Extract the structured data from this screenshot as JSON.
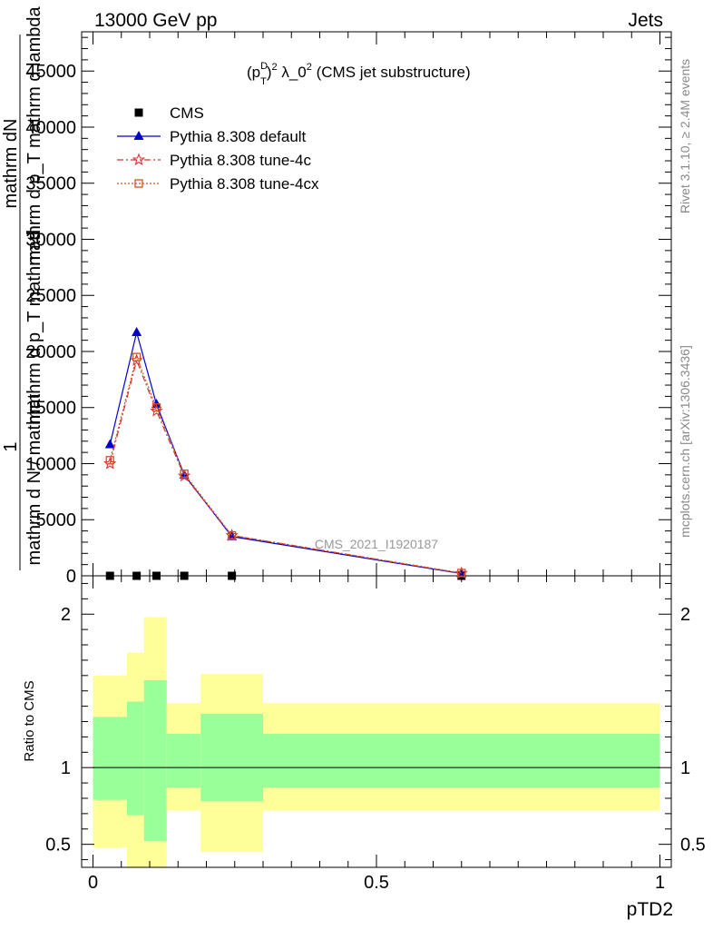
{
  "header": {
    "left": "13000 GeV pp",
    "right": "Jets"
  },
  "side_labels": {
    "rivet": "Rivet 3.1.10, ≥ 2.4M events",
    "mcplots": "mcplots.cern.ch [arXiv:1306.3436]"
  },
  "watermark": "CMS_2021_I1920187",
  "main_title": {
    "base": "(p",
    "sup1": "D",
    "sub1": "T",
    "close": ")",
    "sup2": "2",
    "mid": " λ_0",
    "sup3": "2",
    "tail": " (CMS jet substructure)"
  },
  "ylabel": {
    "numerator": "1",
    "line1": "mathrm dN",
    "line2": "mathrm d p_T mathrm d lambda",
    "line3": "mathrm d p_T mathrm d",
    "line4": "mathrm d N / mathrm"
  },
  "ratio_ylabel": "Ratio to CMS",
  "xlabel": "pTD2",
  "colors": {
    "default": "#0000cc",
    "tune4c": "#dd3333",
    "tune4cx": "#cc5522",
    "band_outer": "#ffff99",
    "band_inner": "#99ff99",
    "data": "#000000"
  },
  "chart_data": {
    "type": "line",
    "xlim": [
      -0.02,
      1.02
    ],
    "ylim": [
      0,
      48500
    ],
    "ratio_ylim": [
      0.35,
      2.25
    ],
    "x_ticks": [
      "0",
      "0.5",
      "1"
    ],
    "y_ticks": [
      "0",
      "5000",
      "10000",
      "15000",
      "20000",
      "25000",
      "30000",
      "35000",
      "40000",
      "45000"
    ],
    "ratio_ticks": [
      "0.5",
      "1",
      "2"
    ],
    "legend": {
      "position": "top-left",
      "entries": [
        "CMS",
        "Pythia 8.308 default",
        "Pythia 8.308 tune-4c",
        "Pythia 8.308 tune-4cx"
      ]
    },
    "x": [
      0.03,
      0.077,
      0.112,
      0.161,
      0.245,
      0.65
    ],
    "series": [
      {
        "name": "CMS",
        "marker": "square",
        "values": [
          0,
          0,
          0,
          0,
          0,
          0
        ]
      },
      {
        "name": "Pythia 8.308 default",
        "marker": "triangle",
        "values": [
          11700,
          21700,
          15300,
          9000,
          3500,
          200
        ]
      },
      {
        "name": "Pythia 8.308 tune-4c",
        "marker": "star",
        "values": [
          10000,
          19200,
          14700,
          8900,
          3600,
          230
        ]
      },
      {
        "name": "Pythia 8.308 tune-4cx",
        "marker": "open-square",
        "values": [
          10300,
          19500,
          15000,
          9100,
          3600,
          250
        ]
      }
    ],
    "ratio_bands": [
      {
        "x0": 0.0,
        "x1": 0.06,
        "outer": [
          0.48,
          1.6
        ],
        "inner": [
          0.79,
          1.33
        ]
      },
      {
        "x0": 0.06,
        "x1": 0.09,
        "outer": [
          0.35,
          1.75
        ],
        "inner": [
          0.69,
          1.43
        ]
      },
      {
        "x0": 0.09,
        "x1": 0.13,
        "outer": [
          0.35,
          1.98
        ],
        "inner": [
          0.52,
          1.57
        ]
      },
      {
        "x0": 0.13,
        "x1": 0.19,
        "outer": [
          0.72,
          1.42
        ],
        "inner": [
          0.87,
          1.22
        ]
      },
      {
        "x0": 0.19,
        "x1": 0.3,
        "outer": [
          0.45,
          1.61
        ],
        "inner": [
          0.78,
          1.35
        ]
      },
      {
        "x0": 0.3,
        "x1": 1.0,
        "outer": [
          0.72,
          1.42
        ],
        "inner": [
          0.87,
          1.22
        ]
      }
    ]
  }
}
